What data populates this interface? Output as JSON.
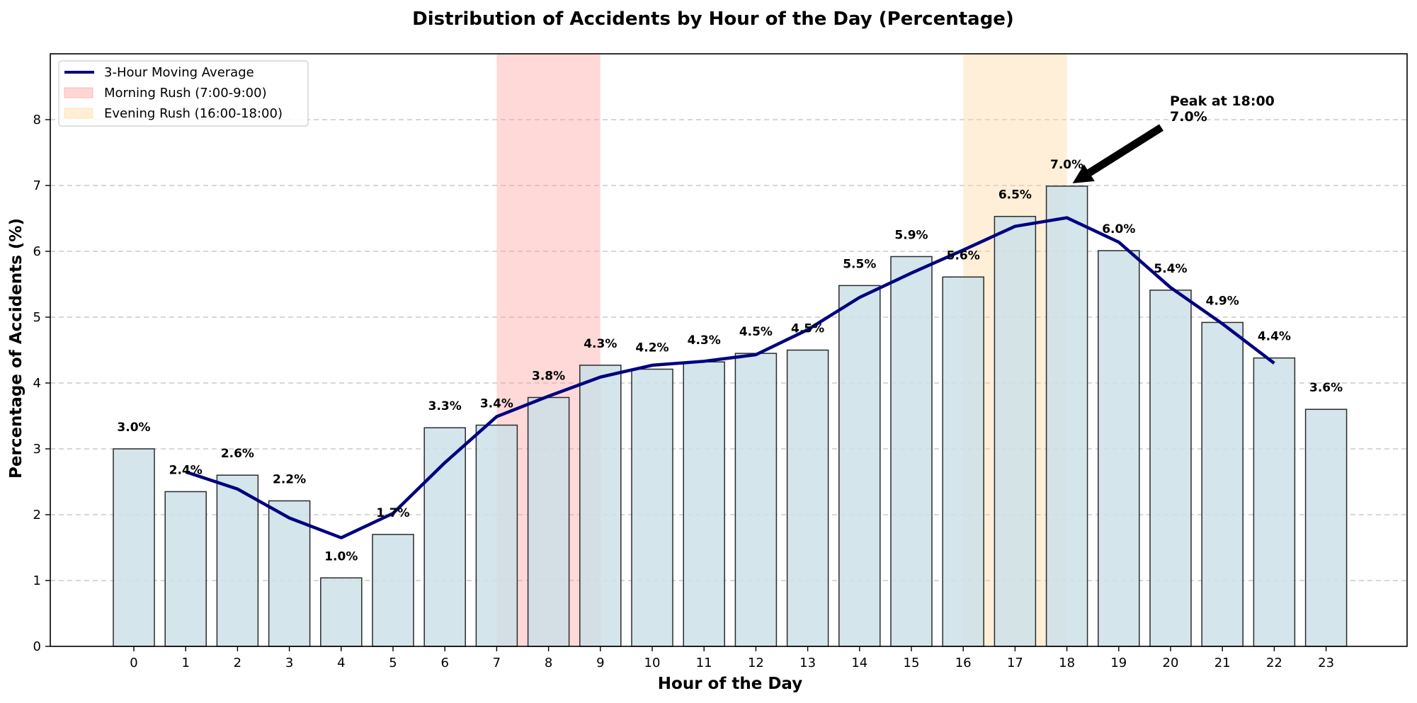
{
  "chart_data": {
    "type": "bar",
    "title": "Distribution of Accidents by Hour of the Day (Percentage)",
    "xlabel": "Hour of the Day",
    "ylabel": "Percentage of Accidents (%)",
    "ylim": [
      0,
      9
    ],
    "yticks": [
      0,
      1,
      2,
      3,
      4,
      5,
      6,
      7,
      8
    ],
    "grid": "horizontal-dashed",
    "legend_position": "top-left",
    "categories": [
      "0",
      "1",
      "2",
      "3",
      "4",
      "5",
      "6",
      "7",
      "8",
      "9",
      "10",
      "11",
      "12",
      "13",
      "14",
      "15",
      "16",
      "17",
      "18",
      "19",
      "20",
      "21",
      "22",
      "23"
    ],
    "values": [
      3.0,
      2.35,
      2.6,
      2.21,
      1.04,
      1.7,
      3.32,
      3.36,
      3.78,
      4.27,
      4.21,
      4.32,
      4.45,
      4.5,
      5.48,
      5.92,
      5.61,
      6.53,
      6.99,
      6.01,
      5.41,
      4.92,
      4.38,
      3.6
    ],
    "value_labels": [
      "3.0%",
      "2.4%",
      "2.6%",
      "2.2%",
      "1.0%",
      "1.7%",
      "3.3%",
      "3.4%",
      "3.8%",
      "4.3%",
      "4.2%",
      "4.3%",
      "4.5%",
      "4.5%",
      "5.5%",
      "5.9%",
      "5.6%",
      "6.5%",
      "7.0%",
      "6.0%",
      "5.4%",
      "4.9%",
      "4.4%",
      "3.6%"
    ],
    "moving_average": {
      "name": "3-Hour Moving Average",
      "x": [
        1,
        2,
        3,
        4,
        5,
        6,
        7,
        8,
        9,
        10,
        11,
        12,
        13,
        14,
        15,
        16,
        17,
        18,
        19,
        20,
        21,
        22
      ],
      "values": [
        2.65,
        2.39,
        1.95,
        1.65,
        2.02,
        2.79,
        3.49,
        3.8,
        4.09,
        4.27,
        4.33,
        4.43,
        4.81,
        5.3,
        5.67,
        6.02,
        6.38,
        6.51,
        6.14,
        5.45,
        4.9,
        4.3
      ]
    },
    "shaded_regions": [
      {
        "name": "Morning Rush (7:00-9:00)",
        "x_start": 7,
        "x_end": 9,
        "color": "#ff9999"
      },
      {
        "name": "Evening Rush (16:00-18:00)",
        "x_start": 16,
        "x_end": 18,
        "color": "#ffd699"
      }
    ],
    "annotation": {
      "line1": "Peak at 18:00",
      "line2": "7.0%",
      "x": 18,
      "y": 6.99
    },
    "colors": {
      "bar_fill": "#cce0e8",
      "bar_edge": "#2b2b2b",
      "line": "#000080",
      "grid": "#bfbfbf"
    }
  }
}
